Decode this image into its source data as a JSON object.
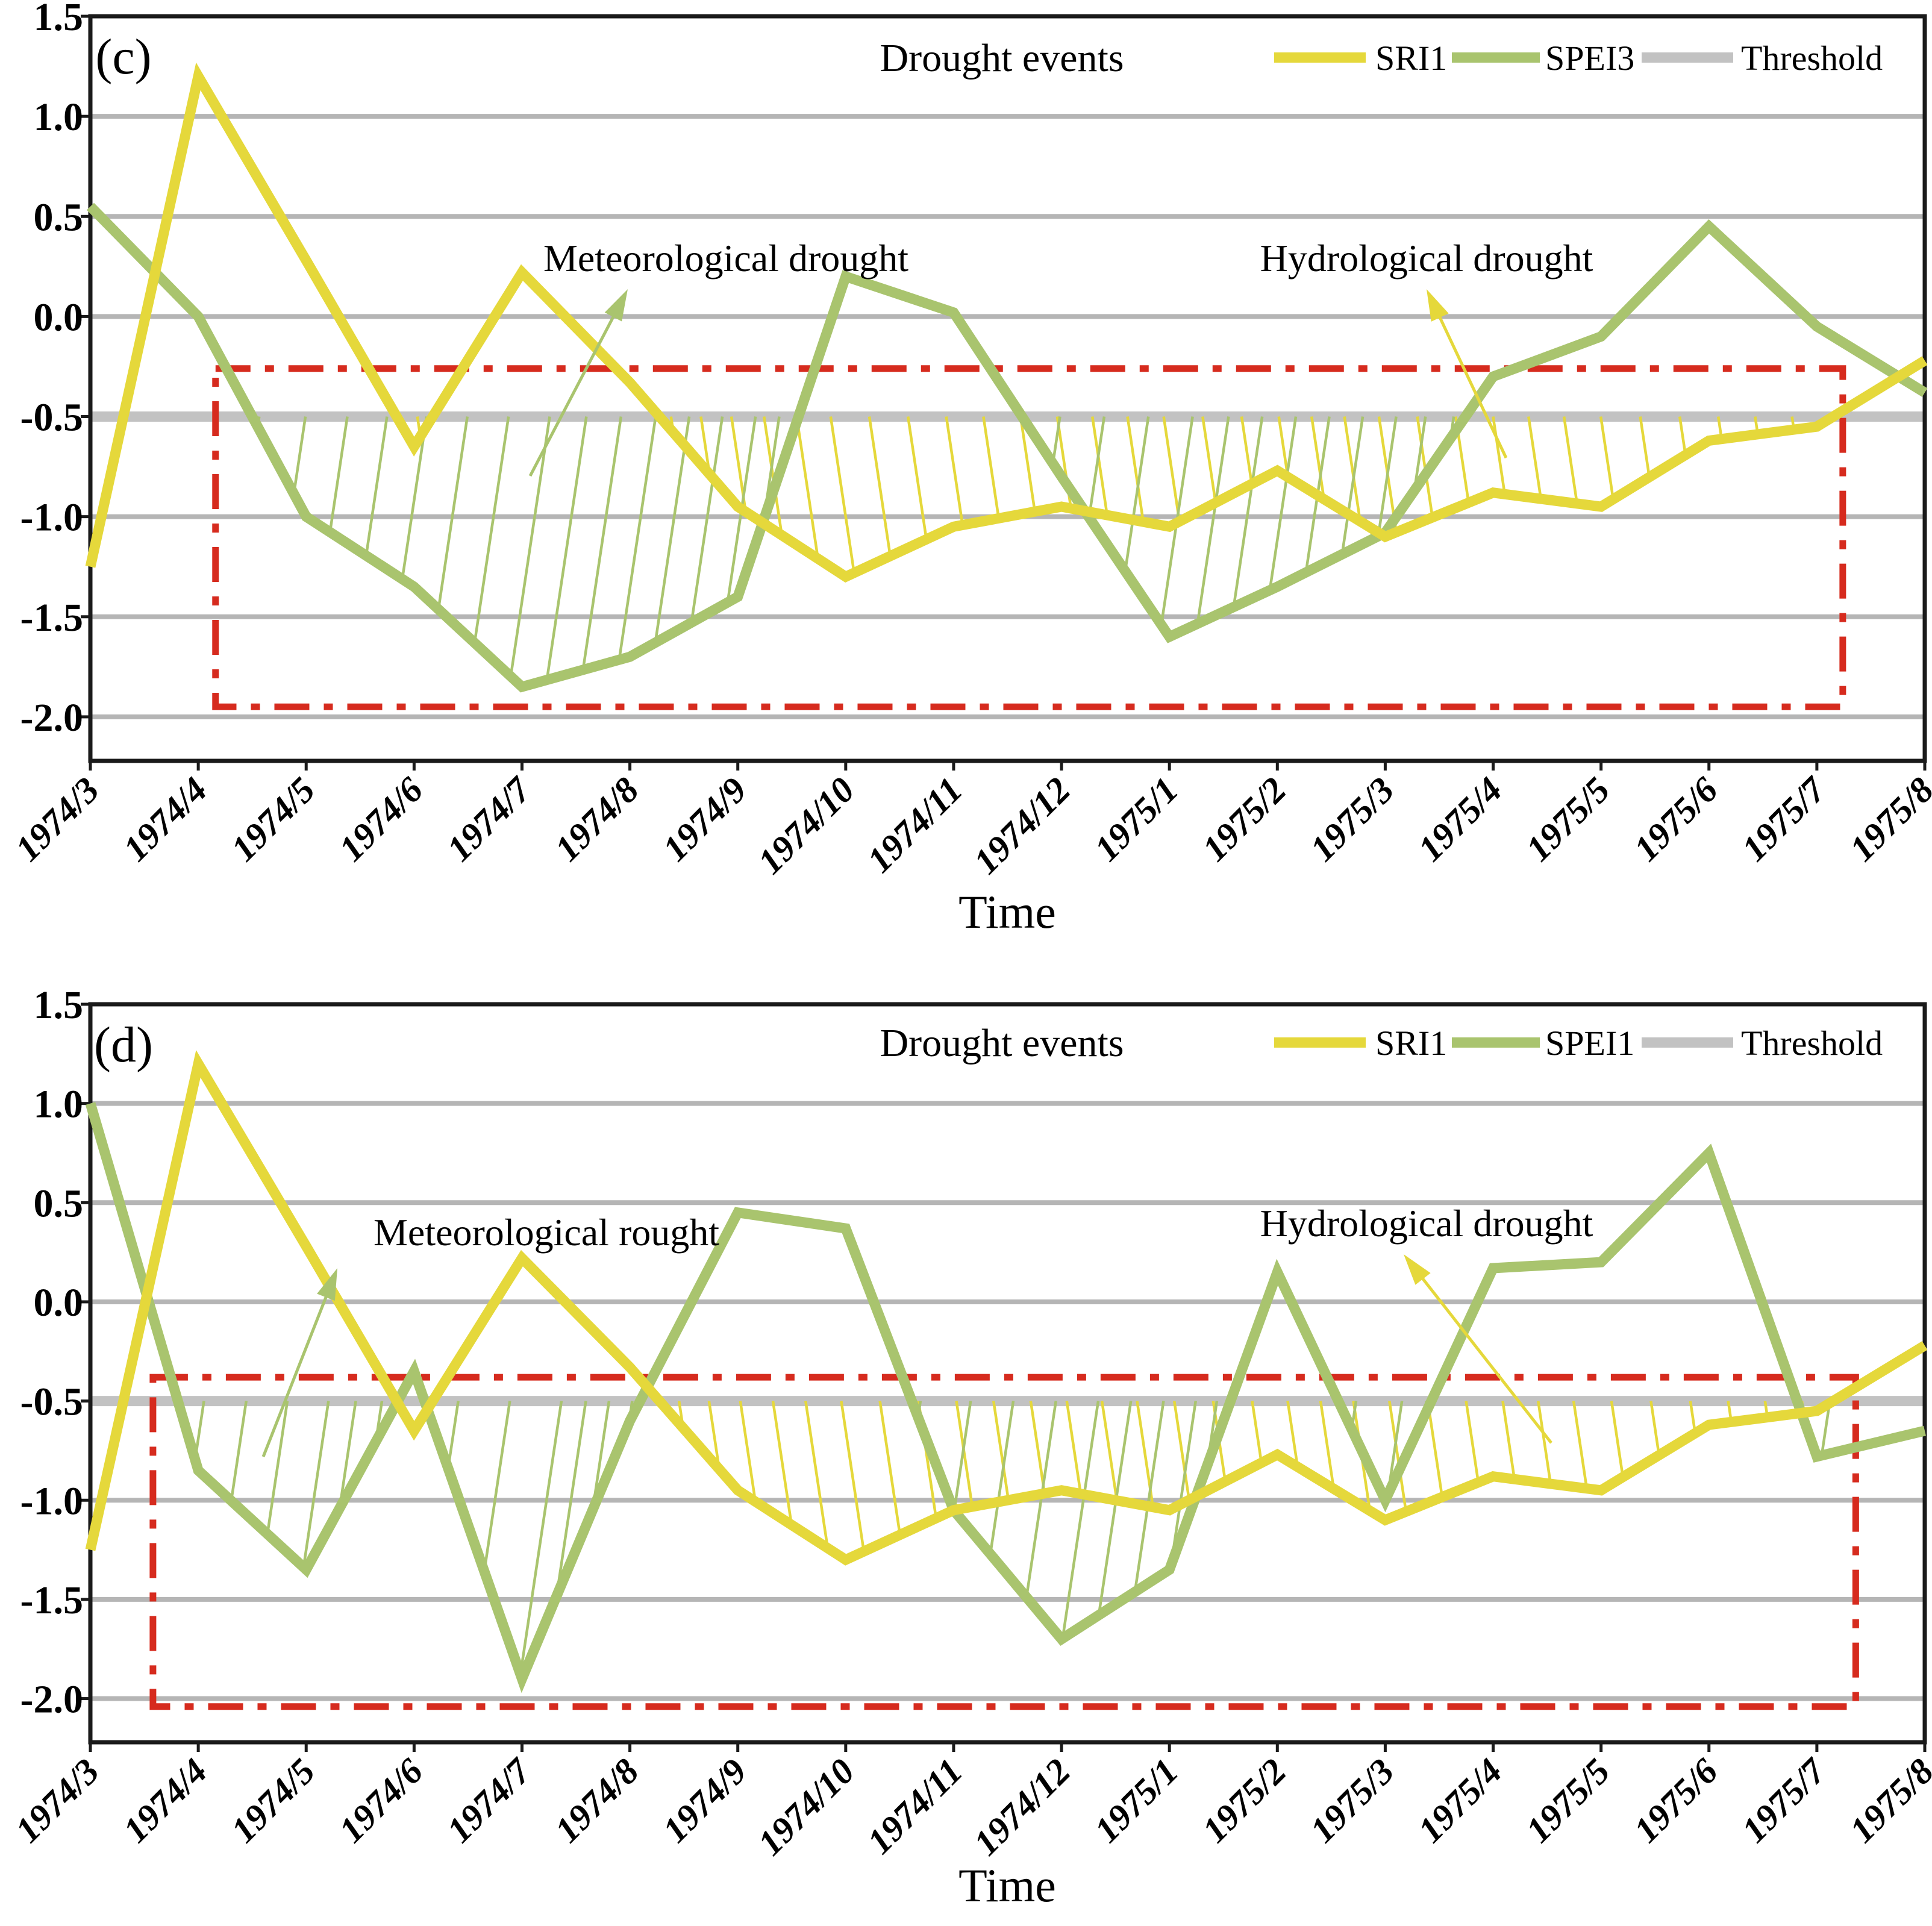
{
  "figure": {
    "background": "#ffffff",
    "time_axis_label": "Time"
  },
  "chart_data": [
    {
      "type": "line",
      "panel_label": "(c)",
      "title": "Drought events",
      "xlabel": "Time",
      "x_categories": [
        "1974/3",
        "1974/4",
        "1974/5",
        "1974/6",
        "1974/7",
        "1974/8",
        "1974/9",
        "1974/10",
        "1974/11",
        "1974/12",
        "1975/1",
        "1975/2",
        "1975/3",
        "1975/4",
        "1975/5",
        "1975/6",
        "1975/7",
        "1975/8"
      ],
      "y_tick_labels": [
        "1.5",
        "1.0",
        "0.5",
        "0.0",
        "-0.5",
        "-1.0",
        "-1.5",
        "-2.0"
      ],
      "y_ticks": [
        1.5,
        1.0,
        0.5,
        0.0,
        -0.5,
        -1.0,
        -1.5,
        -2.0
      ],
      "ylim": [
        -2.22,
        1.5
      ],
      "grid": true,
      "legend_position": "top",
      "threshold_value": -0.5,
      "series": [
        {
          "name": "SRI1",
          "color": "#e5d83b",
          "values": [
            -1.25,
            1.2,
            0.28,
            -0.65,
            0.22,
            -0.33,
            -0.95,
            -1.3,
            -1.05,
            -0.95,
            -1.05,
            -0.77,
            -1.1,
            -0.88,
            -0.95,
            -0.62,
            -0.55,
            -0.22
          ]
        },
        {
          "name": "SPEI3",
          "color": "#a9c46e",
          "values": [
            0.55,
            0.0,
            -1.0,
            -1.35,
            -1.85,
            -1.7,
            -1.4,
            0.2,
            0.02,
            -0.8,
            -1.6,
            -1.35,
            -1.08,
            -0.3,
            -0.1,
            0.45,
            -0.05,
            -0.38
          ]
        }
      ],
      "legend": [
        {
          "label": "SRI1",
          "color": "#e5d83b"
        },
        {
          "label": "SPEI3",
          "color": "#a9c46e"
        },
        {
          "label": "Threshold",
          "color": "#c2c2c2"
        }
      ],
      "drought_event_box": {
        "color": "#d62b1e",
        "month_start": 1.16,
        "month_end": 16.24,
        "value_top": -0.26,
        "value_bottom": -1.95
      },
      "annotations": [
        {
          "text": "Meteorological drought",
          "text_x": 1205,
          "text_y": 428,
          "arrow_color": "#a9c46e",
          "arrow_from_x": 880,
          "arrow_from_y": 790,
          "arrow_to_x": 1042,
          "arrow_to_y": 480
        },
        {
          "text": "Hydrological drought",
          "text_x": 2368,
          "text_y": 428,
          "arrow_color": "#e5d83b",
          "arrow_from_x": 2500,
          "arrow_from_y": 760,
          "arrow_to_x": 2368,
          "arrow_to_y": 480
        }
      ]
    },
    {
      "type": "line",
      "panel_label": "(d)",
      "title": "Drought events",
      "xlabel": "Time",
      "x_categories": [
        "1974/3",
        "1974/4",
        "1974/5",
        "1974/6",
        "1974/7",
        "1974/8",
        "1974/9",
        "1974/10",
        "1974/11",
        "1974/12",
        "1975/1",
        "1975/2",
        "1975/3",
        "1975/4",
        "1975/5",
        "1975/6",
        "1975/7",
        "1975/8"
      ],
      "y_tick_labels": [
        "1.5",
        "1.0",
        "0.5",
        "0.0",
        "-0.5",
        "-1.0",
        "-1.5",
        "-2.0"
      ],
      "y_ticks": [
        1.5,
        1.0,
        0.5,
        0.0,
        -0.5,
        -1.0,
        -1.5,
        -2.0
      ],
      "ylim": [
        -2.22,
        1.5
      ],
      "grid": true,
      "legend_position": "top",
      "threshold_value": -0.5,
      "series": [
        {
          "name": "SRI1",
          "color": "#e5d83b",
          "values": [
            -1.25,
            1.2,
            0.28,
            -0.65,
            0.22,
            -0.33,
            -0.95,
            -1.3,
            -1.05,
            -0.95,
            -1.05,
            -0.77,
            -1.1,
            -0.88,
            -0.95,
            -0.62,
            -0.55,
            -0.22
          ]
        },
        {
          "name": "SPEI1",
          "color": "#a9c46e",
          "values": [
            1.0,
            -0.85,
            -1.35,
            -0.35,
            -1.9,
            -0.6,
            0.45,
            0.37,
            -1.05,
            -1.7,
            -1.35,
            0.15,
            -1.0,
            0.17,
            0.2,
            0.75,
            -0.78,
            -0.65
          ]
        }
      ],
      "legend": [
        {
          "label": "SRI1",
          "color": "#e5d83b"
        },
        {
          "label": "SPEI1",
          "color": "#a9c46e"
        },
        {
          "label": "Threshold",
          "color": "#c2c2c2"
        }
      ],
      "drought_event_box": {
        "color": "#d62b1e",
        "month_start": 0.58,
        "month_end": 16.36,
        "value_top": -0.38,
        "value_bottom": -2.04
      },
      "annotations": [
        {
          "text": "Meteorological rought",
          "text_x": 907,
          "text_y": 445,
          "arrow_color": "#a9c46e",
          "arrow_from_x": 437,
          "arrow_from_y": 818,
          "arrow_to_x": 560,
          "arrow_to_y": 505
        },
        {
          "text": "Hydrological drought",
          "text_x": 2368,
          "text_y": 430,
          "arrow_color": "#e5d83b",
          "arrow_from_x": 2575,
          "arrow_from_y": 795,
          "arrow_to_x": 2330,
          "arrow_to_y": 482
        }
      ]
    }
  ]
}
